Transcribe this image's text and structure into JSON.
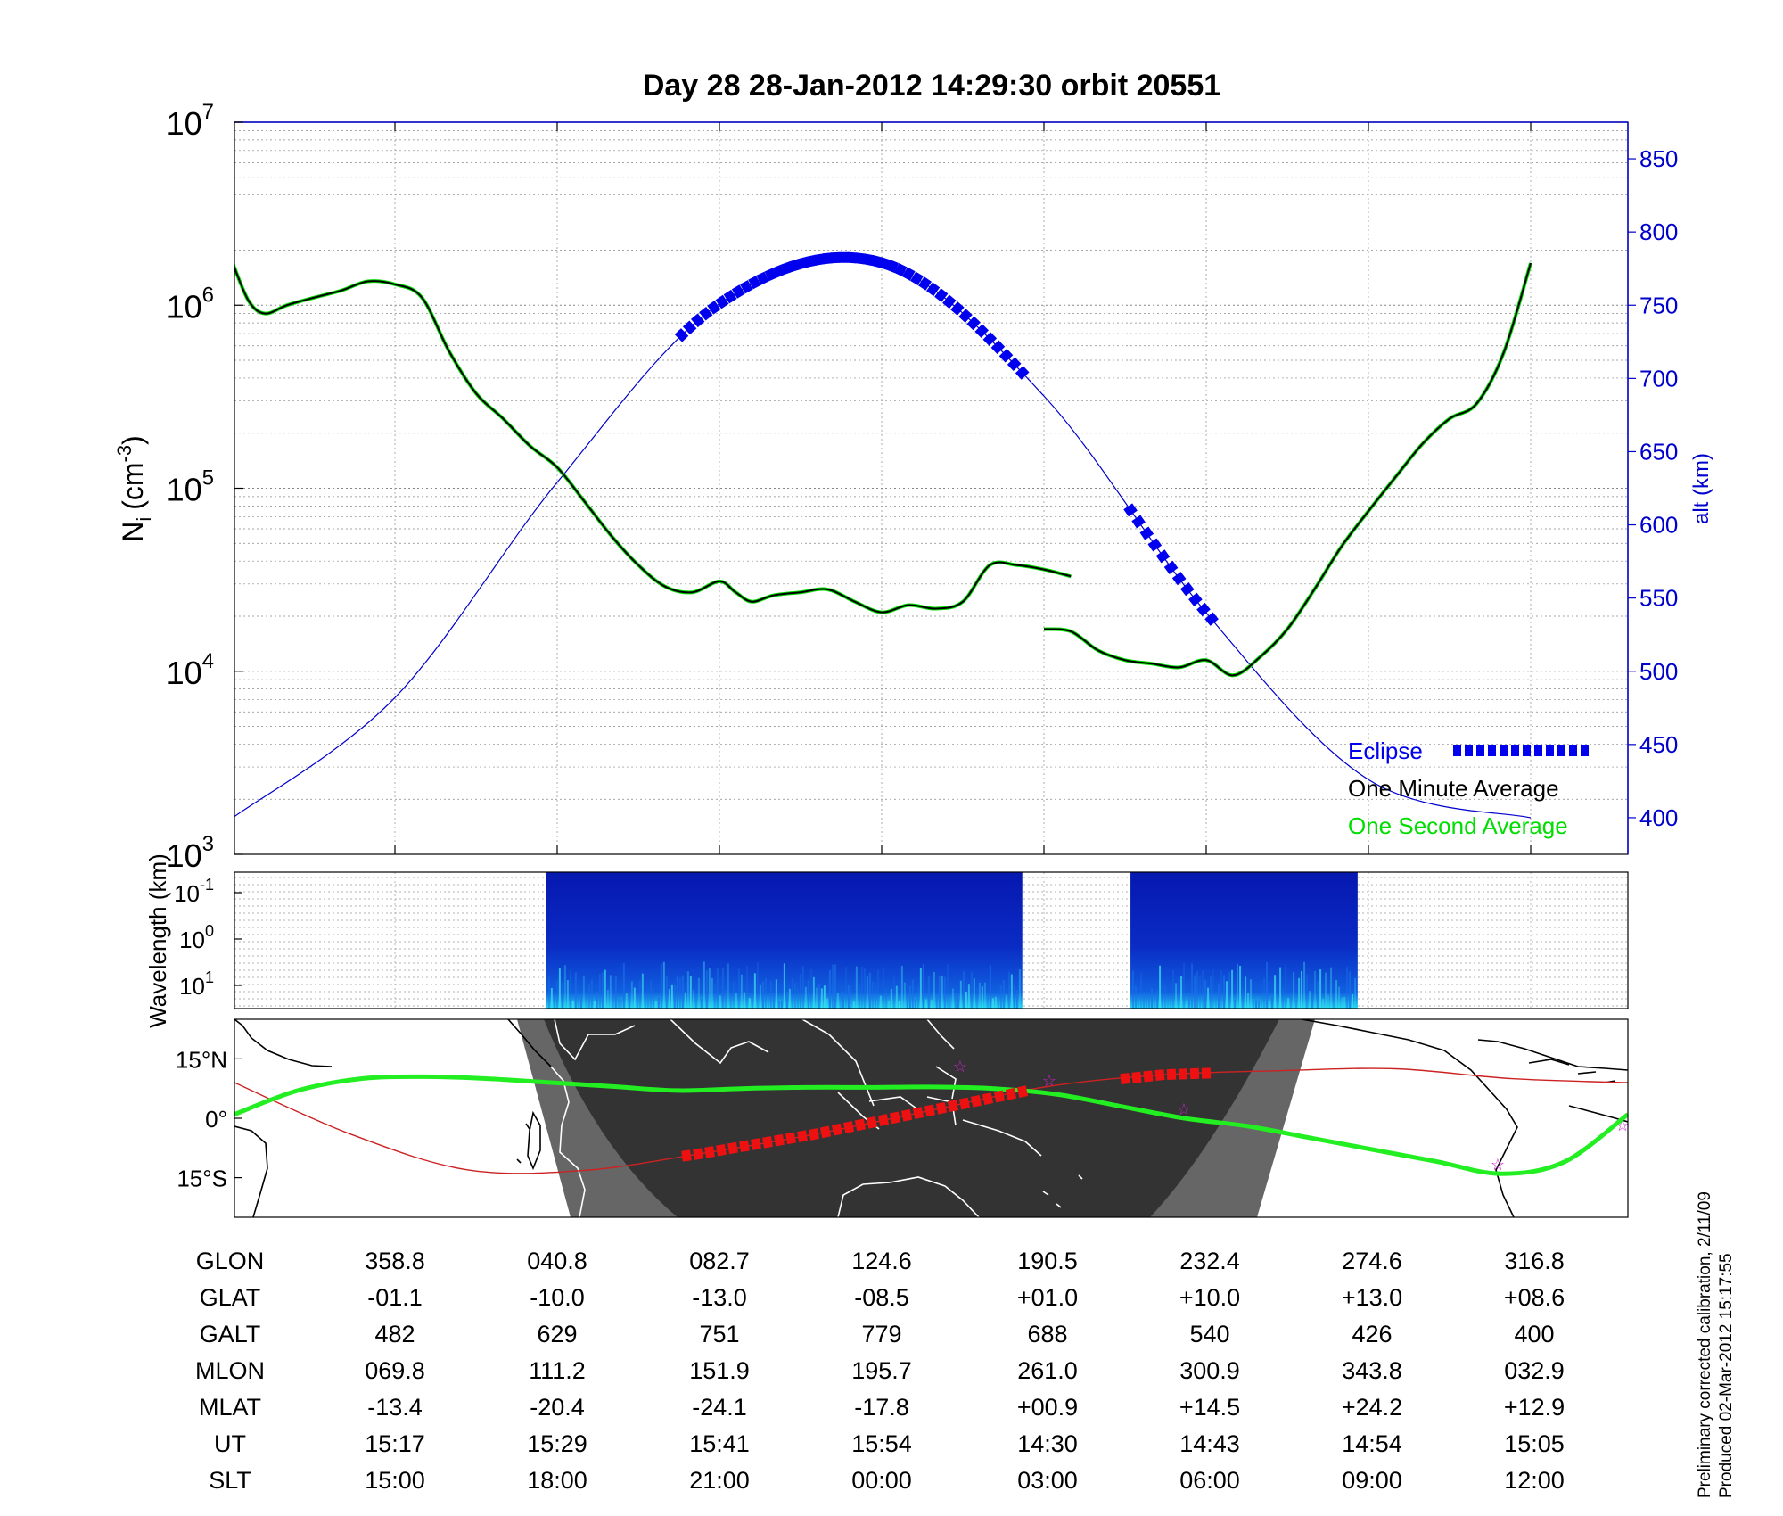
{
  "title": "Day 28  28-Jan-2012 14:29:30   orbit 20551",
  "colors": {
    "alt_axis": "#0000cc",
    "eclipse": "#0000ee",
    "minute_avg": "#000000",
    "second_avg": "#00dd00",
    "track": "#22ee22",
    "magnetic_eq": "#cc2222",
    "eclipse_track": "#ee1111",
    "night": "#333333",
    "twilight": "#666666"
  },
  "chart_data": [
    {
      "type": "line",
      "ylabel_base": "N",
      "ylabel_sub": "i",
      "ylabel_unit": "(cm",
      "ylabel_sup": "-3",
      "y_scale": "log",
      "ylim": [
        1000,
        10000000
      ],
      "y_tick_labels": [
        {
          "base": "10",
          "exp": "3",
          "value": 1000
        },
        {
          "base": "10",
          "exp": "4",
          "value": 10000
        },
        {
          "base": "10",
          "exp": "5",
          "value": 100000
        },
        {
          "base": "10",
          "exp": "6",
          "value": 1000000
        },
        {
          "base": "10",
          "exp": "7",
          "value": 10000000
        }
      ],
      "y2label": "alt (km)",
      "y2lim": [
        375,
        875
      ],
      "y2_ticks": [
        "400",
        "450",
        "500",
        "550",
        "600",
        "650",
        "700",
        "750",
        "800",
        "850"
      ],
      "x_ticks": [
        "15:00",
        "18:00",
        "21:00",
        "00:00",
        "03:00",
        "06:00",
        "09:00",
        "12:00"
      ],
      "grid": true,
      "legend_position": "bottom-right",
      "legend": [
        {
          "name": "Eclipse",
          "color": "#0000ee",
          "marker": "square-dashed"
        },
        {
          "name": "One Minute Average",
          "color": "#000000"
        },
        {
          "name": "One Second Average",
          "color": "#00dd00"
        }
      ],
      "series": [
        {
          "name": "One Minute Average",
          "x_slt_hours": [
            12.0,
            12.3,
            12.6,
            13.0,
            13.5,
            14.0,
            14.5,
            15.0,
            15.5,
            16.0,
            16.5,
            17.0,
            17.5,
            18.0,
            18.5,
            19.0,
            19.5,
            20.0,
            20.5,
            21.0,
            21.3,
            21.6,
            22.0,
            22.5,
            23.0,
            23.5,
            24.0,
            24.5,
            25.0,
            25.5,
            26.0,
            26.5,
            27.0,
            27.5
          ],
          "y_cm3": [
            1700000,
            1050000,
            900000,
            1000000,
            1100000,
            1200000,
            1350000,
            1300000,
            1100000,
            560000,
            330000,
            240000,
            170000,
            130000,
            85000,
            55000,
            38000,
            29000,
            27000,
            31000,
            27000,
            24000,
            26000,
            27000,
            28000,
            24000,
            21000,
            23000,
            22000,
            24000,
            38000,
            38000,
            36000,
            33000
          ],
          "break_after_index": 33
        },
        {
          "name": "One Minute Average (after gap)",
          "x_slt_hours": [
            27.0,
            27.5,
            28.0,
            28.5,
            29.0,
            29.5,
            30.0,
            30.5,
            31.0,
            31.5,
            32.0,
            32.5,
            33.0,
            33.5,
            34.0,
            34.5,
            35.0,
            35.5,
            36.0
          ],
          "y_cm3": [
            17000,
            16500,
            13000,
            11500,
            11000,
            10500,
            11500,
            9500,
            12000,
            17000,
            28000,
            48000,
            75000,
            115000,
            175000,
            240000,
            290000,
            550000,
            1700000
          ]
        }
      ],
      "altitude_km": {
        "x_slt_hours": [
          12.0,
          15.0,
          18.0,
          21.0,
          24.0,
          27.0,
          30.0,
          33.0,
          36.0
        ],
        "values": [
          400,
          482,
          629,
          751,
          779,
          688,
          540,
          426,
          400
        ]
      },
      "eclipse_intervals_slt_hours": [
        [
          20.3,
          26.6
        ],
        [
          28.6,
          30.2
        ]
      ]
    },
    {
      "type": "heatmap",
      "ylabel": "Wavelength (km)",
      "y_scale": "log",
      "y_tick_labels": [
        {
          "base": "10",
          "exp": "-1"
        },
        {
          "base": "10",
          "exp": "0"
        },
        {
          "base": "10",
          "exp": "1"
        }
      ],
      "data_intervals_slt_hours": [
        [
          17.8,
          26.6
        ],
        [
          28.6,
          32.8
        ]
      ]
    },
    {
      "type": "map",
      "y_tick_labels": [
        "15°N",
        "0°",
        "15°S"
      ],
      "ylim_deg": [
        -25,
        25
      ],
      "track_lat": [
        1,
        7,
        10,
        10.5,
        10,
        9,
        8,
        7,
        7.5,
        7.8,
        7.8,
        7.9,
        7.5,
        6,
        3,
        0,
        -2,
        -5,
        -8,
        -11,
        -14,
        -11,
        1
      ],
      "magnetic_equator_lat": [
        9,
        -4,
        -13,
        -13.2,
        -9,
        -4,
        2,
        8,
        11,
        12,
        12.5,
        10,
        9
      ]
    }
  ],
  "table": {
    "row_labels": [
      "GLON",
      "GLAT",
      "GALT",
      "MLON",
      "MLAT",
      "UT",
      "SLT"
    ],
    "columns": [
      {
        "GLON": "358.8",
        "GLAT": "-01.1",
        "GALT": "482",
        "MLON": "069.8",
        "MLAT": "-13.4",
        "UT": "15:17",
        "SLT": "15:00"
      },
      {
        "GLON": "040.8",
        "GLAT": "-10.0",
        "GALT": "629",
        "MLON": "111.2",
        "MLAT": "-20.4",
        "UT": "15:29",
        "SLT": "18:00"
      },
      {
        "GLON": "082.7",
        "GLAT": "-13.0",
        "GALT": "751",
        "MLON": "151.9",
        "MLAT": "-24.1",
        "UT": "15:41",
        "SLT": "21:00"
      },
      {
        "GLON": "124.6",
        "GLAT": "-08.5",
        "GALT": "779",
        "MLON": "195.7",
        "MLAT": "-17.8",
        "UT": "15:54",
        "SLT": "00:00"
      },
      {
        "GLON": "190.5",
        "GLAT": "+01.0",
        "GALT": "688",
        "MLON": "261.0",
        "MLAT": "+00.9",
        "UT": "14:30",
        "SLT": "03:00"
      },
      {
        "GLON": "232.4",
        "GLAT": "+10.0",
        "GALT": "540",
        "MLON": "300.9",
        "MLAT": "+14.5",
        "UT": "14:43",
        "SLT": "06:00"
      },
      {
        "GLON": "274.6",
        "GLAT": "+13.0",
        "GALT": "426",
        "MLON": "343.8",
        "MLAT": "+24.2",
        "UT": "14:54",
        "SLT": "09:00"
      },
      {
        "GLON": "316.8",
        "GLAT": "+08.6",
        "GALT": "400",
        "MLON": "032.9",
        "MLAT": "+12.9",
        "UT": "15:05",
        "SLT": "12:00"
      }
    ]
  },
  "footnote": {
    "line1": "Preliminary corrected calibration, 2/11/09",
    "line2": "Produced 02-Mar-2012 15:17:55"
  }
}
